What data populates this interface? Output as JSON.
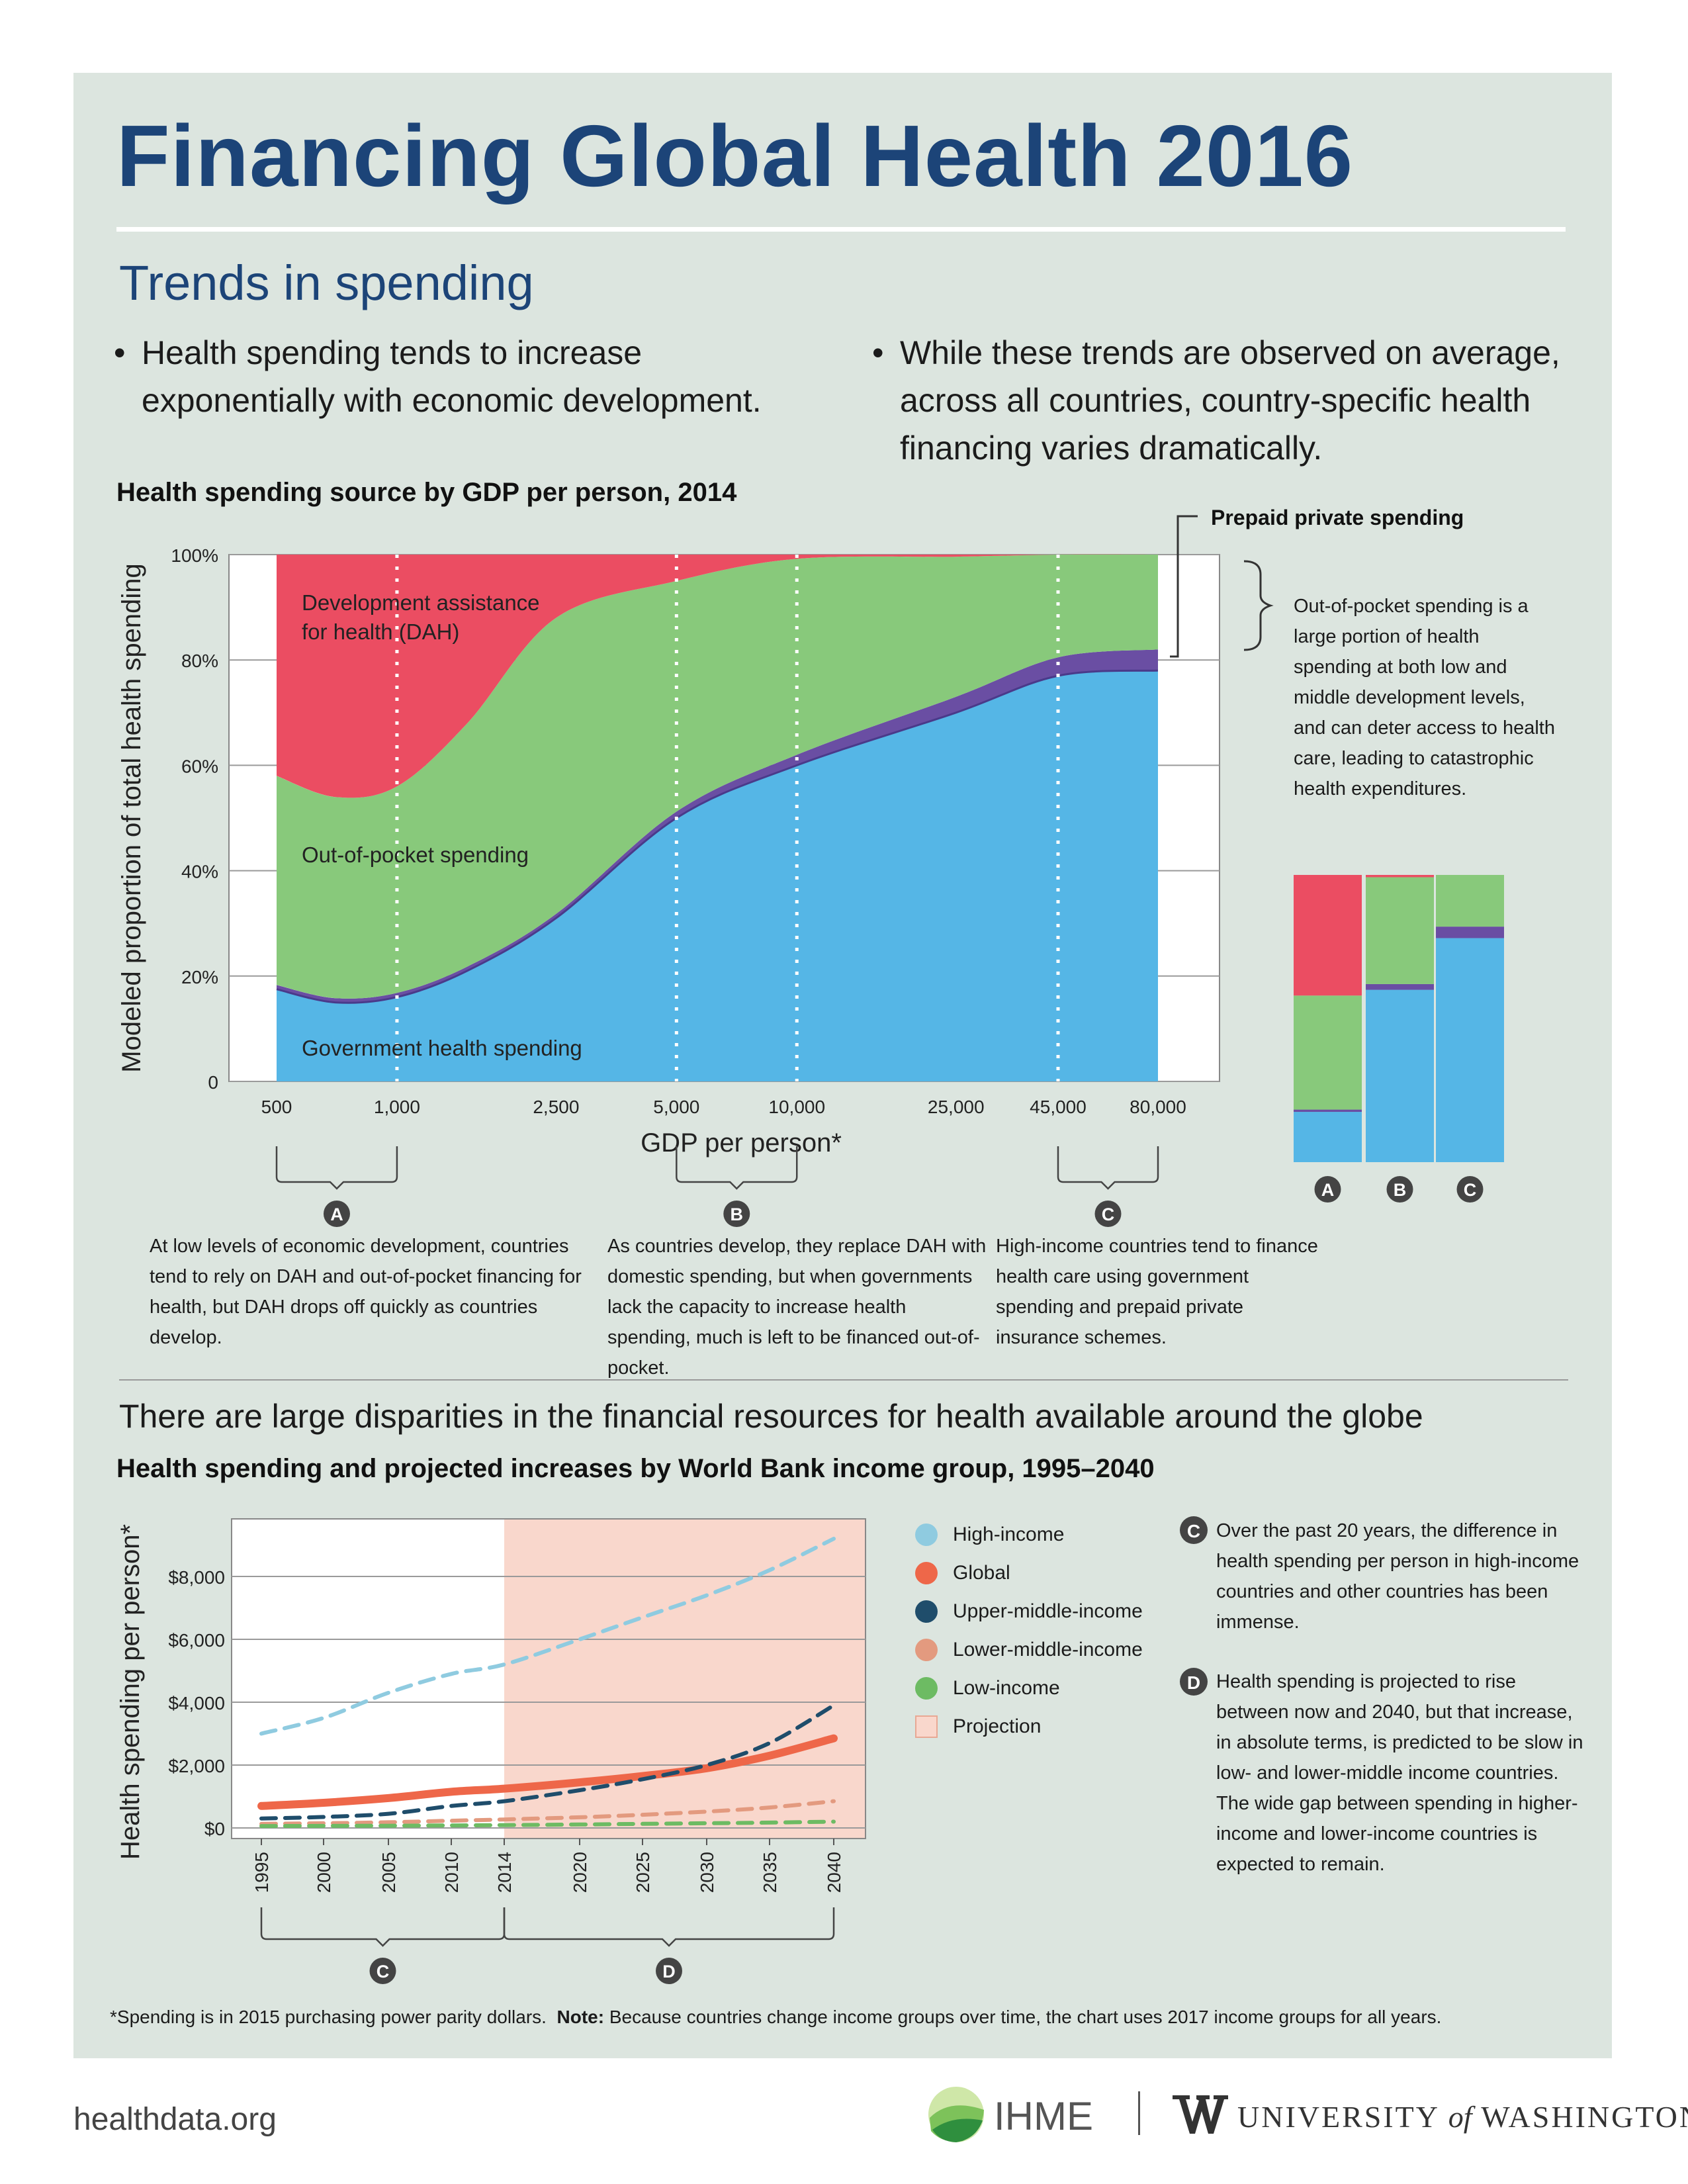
{
  "title": "Financing Global Health 2016",
  "section1": {
    "heading": "Trends in spending",
    "bullets": [
      "Health spending tends to increase exponentially with economic development.",
      "While these trends are observed on average, across all countries, country-specific health financing varies dramatically."
    ]
  },
  "chart1": {
    "title": "Health spending source by GDP per person, 2014",
    "prepaid_label": "Prepaid private spending",
    "oop_note": "Out-of-pocket spending is a large portion of health spending at both low and middle development levels, and can deter access to health care, leading to catastrophic health expenditures.",
    "notes": {
      "A": "At low levels of economic development, countries tend to rely on DAH and out-of-pocket financing for health, but DAH drops off quickly as countries develop.",
      "B": "As countries develop, they replace DAH with domestic spending, but when governments lack the capacity to increase health spending, much is left to be financed out-of-pocket.",
      "C": "High-income countries tend to finance health care using government spending and prepaid private insurance schemes."
    },
    "markers": [
      "A",
      "B",
      "C"
    ]
  },
  "section2": {
    "heading": "There are large disparities in the financial resources for health available around the globe"
  },
  "chart2": {
    "title": "Health spending and projected increases by World Bank income group, 1995–2040",
    "notes": {
      "C": "Over the past 20 years, the difference in health spending per person in high-income countries and other countries has been immense.",
      "D": "Health spending is projected to rise between now and 2040, but that increase, in absolute terms, is predicted to be slow in low- and lower-middle income countries. The wide gap between spending in higher-income and lower-income countries is expected to remain."
    },
    "legend": [
      {
        "label": "High-income",
        "color": "#8fcbe0"
      },
      {
        "label": "Global",
        "color": "#ee6749"
      },
      {
        "label": "Upper-middle-income",
        "color": "#1f4d6b"
      },
      {
        "label": "Lower-middle-income",
        "color": "#e39a7f"
      },
      {
        "label": "Low-income",
        "color": "#6dbb63"
      },
      {
        "label": "Projection",
        "color": "#f9d7cc"
      }
    ]
  },
  "chart_data": [
    {
      "type": "area",
      "title": "Health spending source by GDP per person, 2014",
      "xlabel": "GDP per person*",
      "ylabel": "Modeled proportion of total health spending",
      "x_scale": "log",
      "x_ticks": [
        "500",
        "1,000",
        "2,500",
        "5,000",
        "10,000",
        "25,000",
        "45,000",
        "80,000"
      ],
      "y_ticks": [
        "100%",
        "80%",
        "60%",
        "40%",
        "20%",
        "0"
      ],
      "ylim": [
        0,
        100
      ],
      "x": [
        500,
        700,
        1000,
        1500,
        2500,
        5000,
        10000,
        25000,
        45000,
        80000
      ],
      "series": [
        {
          "name": "Government health spending",
          "color": "#55b6e6",
          "values": [
            17.5,
            15,
            16,
            21,
            31,
            50,
            60,
            70,
            77,
            78
          ]
        },
        {
          "name": "Prepaid private spending",
          "color": "#6a4ea3",
          "values": [
            0.8,
            0.8,
            0.8,
            0.8,
            0.8,
            1.2,
            2,
            3,
            3.5,
            4
          ]
        },
        {
          "name": "Out-of-pocket spending",
          "color": "#88c97b",
          "values": [
            39.7,
            38.2,
            39.2,
            46.2,
            56.2,
            43.8,
            37.2,
            26.6,
            19.5,
            18
          ]
        },
        {
          "name": "Development assistance for health (DAH)",
          "color": "#eb4d62",
          "values": [
            42,
            46,
            44,
            32,
            12,
            5,
            0.8,
            0.4,
            0,
            0
          ]
        }
      ],
      "bars": [
        {
          "label": "A",
          "government": 17.5,
          "prepaid": 0.8,
          "oop": 39.7,
          "dah": 42
        },
        {
          "label": "B",
          "government": 60,
          "prepaid": 2,
          "oop": 37.2,
          "dah": 0.8
        },
        {
          "label": "C",
          "government": 78,
          "prepaid": 4,
          "oop": 18,
          "dah": 0
        }
      ]
    },
    {
      "type": "line",
      "title": "Health spending and projected increases by World Bank income group, 1995–2040",
      "ylabel": "Health spending per person*",
      "x_ticks": [
        "1995",
        "2000",
        "2005",
        "2010",
        "2014",
        "2020",
        "2025",
        "2030",
        "2035",
        "2040"
      ],
      "y_ticks": [
        "$8,000",
        "$6,000",
        "$4,000",
        "$2,000",
        "$0"
      ],
      "ylim": [
        0,
        9600
      ],
      "projection_start": 2014,
      "x": [
        1995,
        2000,
        2005,
        2010,
        2014,
        2020,
        2025,
        2030,
        2035,
        2040
      ],
      "series": [
        {
          "name": "High-income",
          "color": "#8fcbe0",
          "dashed": true,
          "values": [
            3000,
            3500,
            4300,
            4900,
            5200,
            6000,
            6700,
            7400,
            8200,
            9200
          ]
        },
        {
          "name": "Global",
          "color": "#ee6749",
          "dashed": false,
          "values": [
            700,
            800,
            950,
            1150,
            1250,
            1450,
            1650,
            1900,
            2300,
            2850
          ]
        },
        {
          "name": "Upper-middle-income",
          "color": "#1f4d6b",
          "dashed": true,
          "values": [
            300,
            350,
            450,
            700,
            850,
            1200,
            1550,
            2000,
            2700,
            3900
          ]
        },
        {
          "name": "Lower-middle-income",
          "color": "#e39a7f",
          "dashed": true,
          "values": [
            130,
            150,
            180,
            230,
            270,
            340,
            420,
            520,
            650,
            850
          ]
        },
        {
          "name": "Low-income",
          "color": "#6dbb63",
          "dashed": true,
          "values": [
            60,
            65,
            70,
            80,
            90,
            110,
            130,
            150,
            170,
            200
          ]
        }
      ]
    }
  ],
  "footnote": {
    "main": "*Spending is in 2015 purchasing power parity dollars.",
    "note_label": "Note:",
    "note_text": " Because countries change income groups over time, the chart uses 2017 income groups for all years."
  },
  "footer": {
    "site": "healthdata.org",
    "ihme": "IHME",
    "uw_pre": "UNIVERSITY ",
    "uw_of": "of",
    "uw_post": " WASHINGTON"
  }
}
